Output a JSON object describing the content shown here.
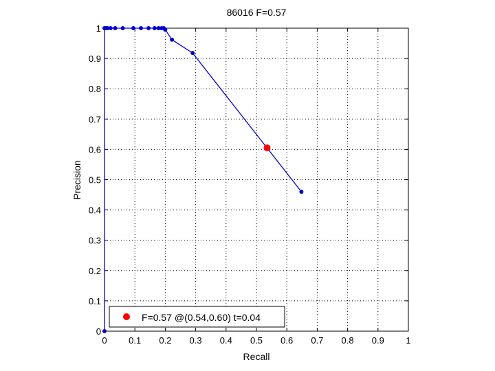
{
  "chart_data": {
    "type": "line",
    "title": "86016 F=0.57",
    "xlabel": "Recall",
    "ylabel": "Precision",
    "xlim": [
      0,
      1
    ],
    "ylim": [
      0,
      1
    ],
    "xticks": [
      "0",
      "0.1",
      "0.2",
      "0.3",
      "0.4",
      "0.5",
      "0.6",
      "0.7",
      "0.8",
      "0.9",
      "1"
    ],
    "yticks": [
      "0",
      "0.1",
      "0.2",
      "0.3",
      "0.4",
      "0.5",
      "0.6",
      "0.7",
      "0.8",
      "0.9",
      "1"
    ],
    "grid": true,
    "legend_position": "bottom-left",
    "series": [
      {
        "color": "#0000cc",
        "x": [
          0.0,
          0.0,
          0.005,
          0.01,
          0.02,
          0.035,
          0.06,
          0.095,
          0.12,
          0.145,
          0.165,
          0.178,
          0.188,
          0.195,
          0.2,
          0.222,
          0.29,
          0.648
        ],
        "y": [
          0.0,
          1.0,
          1.0,
          1.0,
          1.0,
          1.0,
          1.0,
          1.0,
          1.0,
          1.0,
          1.0,
          1.0,
          1.0,
          1.0,
          0.995,
          0.962,
          0.918,
          0.46
        ]
      }
    ],
    "best_point": {
      "x": 0.535,
      "y": 0.605,
      "color": "#ff0000",
      "label": "F=0.57 @(0.54,0.60) t=0.04"
    }
  }
}
